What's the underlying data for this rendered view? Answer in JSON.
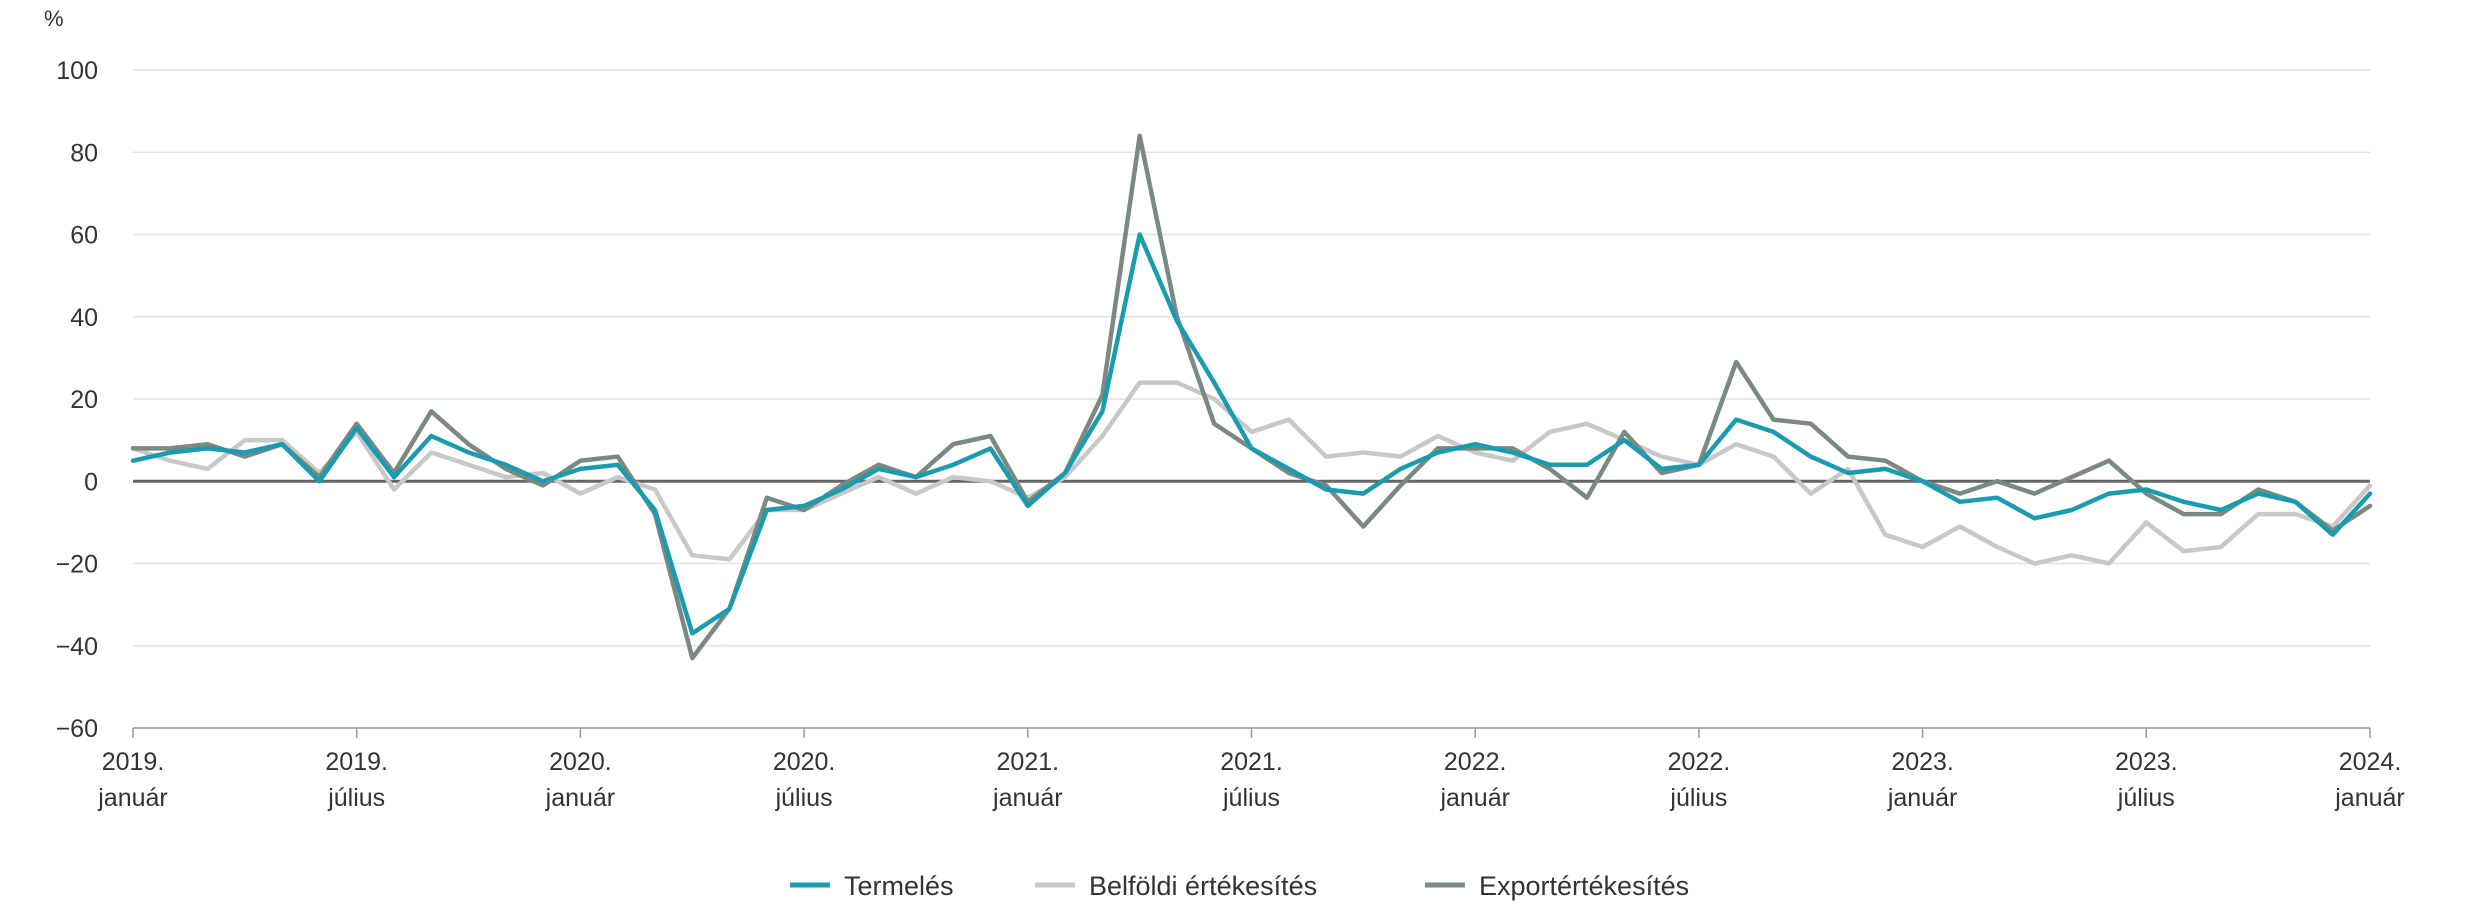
{
  "chart_data": {
    "type": "line",
    "title": "",
    "xlabel": "",
    "ylabel": "%",
    "ylim": [
      -60,
      100
    ],
    "yticks": [
      100,
      80,
      60,
      40,
      20,
      0,
      -20,
      -40,
      -60
    ],
    "ytick_labels": [
      "100",
      "80",
      "60",
      "40",
      "20",
      "0",
      "−20",
      "−40",
      "−60"
    ],
    "grid": true,
    "legend_position": "bottom",
    "x": [
      "2019-01",
      "2019-02",
      "2019-03",
      "2019-04",
      "2019-05",
      "2019-06",
      "2019-07",
      "2019-08",
      "2019-09",
      "2019-10",
      "2019-11",
      "2019-12",
      "2020-01",
      "2020-02",
      "2020-03",
      "2020-04",
      "2020-05",
      "2020-06",
      "2020-07",
      "2020-08",
      "2020-09",
      "2020-10",
      "2020-11",
      "2020-12",
      "2021-01",
      "2021-02",
      "2021-03",
      "2021-04",
      "2021-05",
      "2021-06",
      "2021-07",
      "2021-08",
      "2021-09",
      "2021-10",
      "2021-11",
      "2021-12",
      "2022-01",
      "2022-02",
      "2022-03",
      "2022-04",
      "2022-05",
      "2022-06",
      "2022-07",
      "2022-08",
      "2022-09",
      "2022-10",
      "2022-11",
      "2022-12",
      "2023-01",
      "2023-02",
      "2023-03",
      "2023-04",
      "2023-05",
      "2023-06",
      "2023-07",
      "2023-08",
      "2023-09",
      "2023-10",
      "2023-11",
      "2023-12",
      "2024-01"
    ],
    "x_ticks": [
      {
        "x": "2019-01",
        "year": "2019.",
        "month": "január"
      },
      {
        "x": "2019-07",
        "year": "2019.",
        "month": "július"
      },
      {
        "x": "2020-01",
        "year": "2020.",
        "month": "január"
      },
      {
        "x": "2020-07",
        "year": "2020.",
        "month": "július"
      },
      {
        "x": "2021-01",
        "year": "2021.",
        "month": "január"
      },
      {
        "x": "2021-07",
        "year": "2021.",
        "month": "július"
      },
      {
        "x": "2022-01",
        "year": "2022.",
        "month": "január"
      },
      {
        "x": "2022-07",
        "year": "2022.",
        "month": "július"
      },
      {
        "x": "2023-01",
        "year": "2023.",
        "month": "január"
      },
      {
        "x": "2023-07",
        "year": "2023.",
        "month": "július"
      },
      {
        "x": "2024-01",
        "year": "2024.",
        "month": "január"
      }
    ],
    "series": [
      {
        "name": "Termelés",
        "color": "#1a9bb0",
        "values": [
          5,
          7,
          8,
          7,
          9,
          0,
          13,
          1,
          11,
          7,
          4,
          0,
          3,
          4,
          -7,
          -37,
          -31,
          -7,
          -6,
          -2,
          3,
          1,
          4,
          8,
          -6,
          2,
          17,
          60,
          39,
          24,
          8,
          3,
          -2,
          -3,
          3,
          7,
          9,
          7,
          4,
          4,
          10,
          3,
          4,
          15,
          12,
          6,
          2,
          3,
          0,
          -5,
          -4,
          -9,
          -7,
          -3,
          -2,
          -5,
          -7,
          -3,
          -5,
          -13,
          -3
        ]
      },
      {
        "name": "Belföldi értékesítés",
        "color": "#c8c8c8",
        "values": [
          8,
          5,
          3,
          10,
          10,
          2,
          12,
          -2,
          7,
          4,
          1,
          2,
          -3,
          1,
          -2,
          -18,
          -19,
          -7,
          -7,
          -3,
          1,
          -3,
          1,
          0,
          -4,
          1,
          11,
          24,
          24,
          20,
          12,
          15,
          6,
          7,
          6,
          11,
          7,
          5,
          12,
          14,
          10,
          6,
          4,
          9,
          6,
          -3,
          3,
          -13,
          -16,
          -11,
          -16,
          -20,
          -18,
          -20,
          -10,
          -17,
          -16,
          -8,
          -8,
          -11,
          -1
        ]
      },
      {
        "name": "Exportértékesítés",
        "color": "#7a8a80",
        "values": [
          8,
          8,
          9,
          6,
          9,
          1,
          14,
          2,
          17,
          9,
          3,
          -1,
          5,
          6,
          -8,
          -43,
          -31,
          -4,
          -7,
          -1,
          4,
          1,
          9,
          11,
          -5,
          2,
          21,
          84,
          40,
          14,
          8,
          2,
          -1,
          -11,
          -1,
          8,
          8,
          8,
          3,
          -4,
          12,
          2,
          4,
          29,
          15,
          14,
          6,
          5,
          0,
          -3,
          0,
          -3,
          1,
          5,
          -3,
          -8,
          -8,
          -2,
          -5,
          -12,
          -6
        ]
      }
    ]
  }
}
